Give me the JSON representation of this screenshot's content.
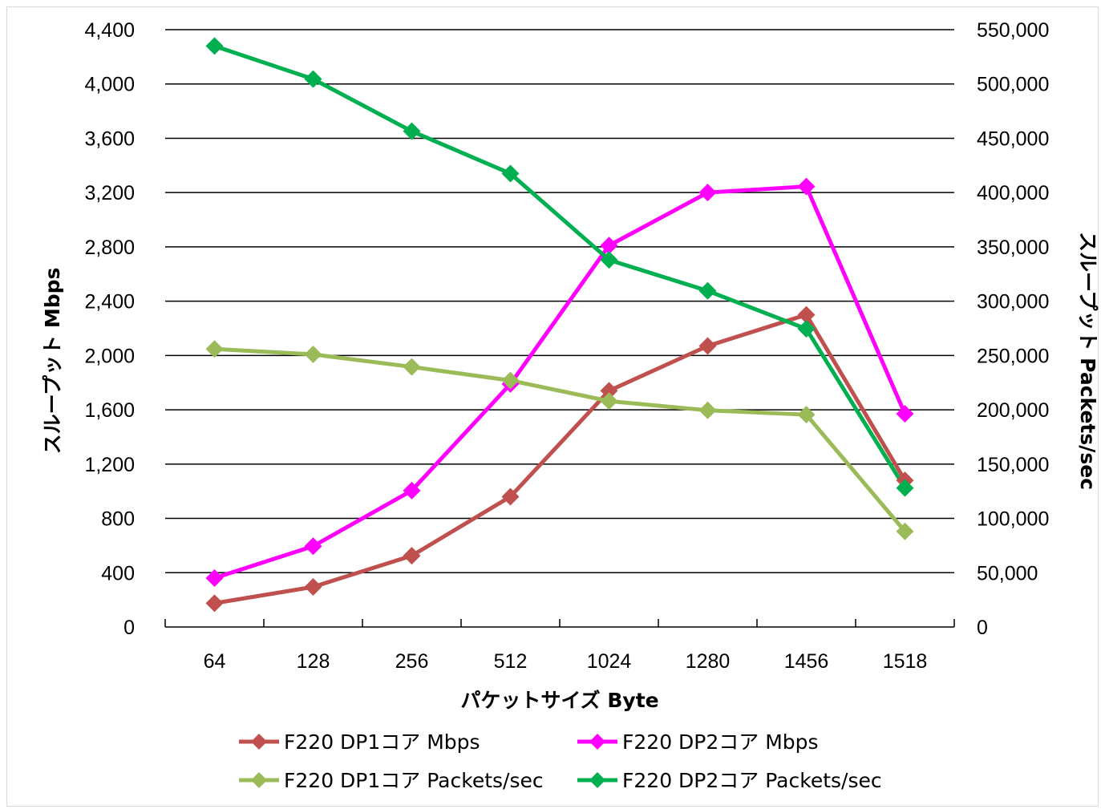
{
  "chart_data": {
    "type": "line",
    "categories": [
      "64",
      "128",
      "256",
      "512",
      "1024",
      "1280",
      "1456",
      "1518"
    ],
    "xlabel": "パケットサイズ Byte",
    "ylabel": "スループット Mbps",
    "y2label": "スループット Packets/sec",
    "ylim": [
      0,
      4400
    ],
    "y2lim": [
      0,
      550000
    ],
    "yticks": [
      "0",
      "400",
      "800",
      "1,200",
      "1,600",
      "2,000",
      "2,400",
      "2,800",
      "3,200",
      "3,600",
      "4,000",
      "4,400"
    ],
    "y2ticks": [
      "0",
      "50,000",
      "100,000",
      "150,000",
      "200,000",
      "250,000",
      "300,000",
      "350,000",
      "400,000",
      "450,000",
      "500,000",
      "550,000"
    ],
    "grid": true,
    "legend_position": "bottom",
    "series": [
      {
        "name": "F220 DP1コア Mbps",
        "axis": "left",
        "color": "#c0504d",
        "values": [
          175,
          295,
          525,
          960,
          1740,
          2070,
          2300,
          1080
        ]
      },
      {
        "name": "F220 DP2コア Mbps",
        "axis": "left",
        "color": "#ff00ff",
        "values": [
          360,
          595,
          1005,
          1790,
          2810,
          3200,
          3245,
          1570
        ]
      },
      {
        "name": "F220 DP1コア Packets/sec",
        "axis": "right",
        "color": "#9bbb59",
        "values": [
          256000,
          251000,
          239500,
          227000,
          208000,
          199500,
          195500,
          88000
        ]
      },
      {
        "name": "F220 DP2コア Packets/sec",
        "axis": "right",
        "color": "#00b050",
        "values": [
          535000,
          504500,
          456500,
          417500,
          338000,
          309500,
          274500,
          128000
        ]
      }
    ]
  }
}
